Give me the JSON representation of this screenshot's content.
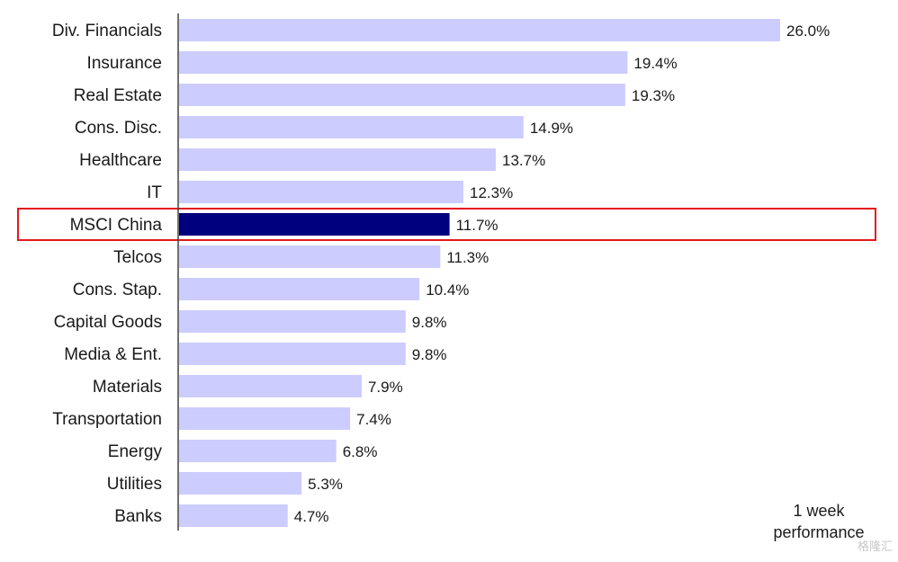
{
  "chart_data": {
    "type": "bar",
    "orientation": "horizontal",
    "categories": [
      "Div. Financials",
      "Insurance",
      "Real Estate",
      "Cons. Disc.",
      "Healthcare",
      "IT",
      "MSCI China",
      "Telcos",
      "Cons. Stap.",
      "Capital Goods",
      "Media & Ent.",
      "Materials",
      "Transportation",
      "Energy",
      "Utilities",
      "Banks"
    ],
    "values": [
      26.0,
      19.4,
      19.3,
      14.9,
      13.7,
      12.3,
      11.7,
      11.3,
      10.4,
      9.8,
      9.8,
      7.9,
      7.4,
      6.8,
      5.3,
      4.7
    ],
    "value_labels": [
      "26.0%",
      "19.4%",
      "19.3%",
      "14.9%",
      "13.7%",
      "12.3%",
      "11.7%",
      "11.3%",
      "10.4%",
      "9.8%",
      "9.8%",
      "7.9%",
      "7.4%",
      "6.8%",
      "5.3%",
      "4.7%"
    ],
    "unit": "%",
    "highlight_category": "MSCI China",
    "xlim": [
      0,
      26.0
    ],
    "grid": false,
    "colors": {
      "bar": "#ccccff",
      "highlight_bar": "#00007f",
      "highlight_box": "#e31a1c",
      "axis": "#404040"
    },
    "annotation": {
      "line1": "1 week",
      "line2": "performance"
    },
    "watermark": "格隆汇"
  }
}
